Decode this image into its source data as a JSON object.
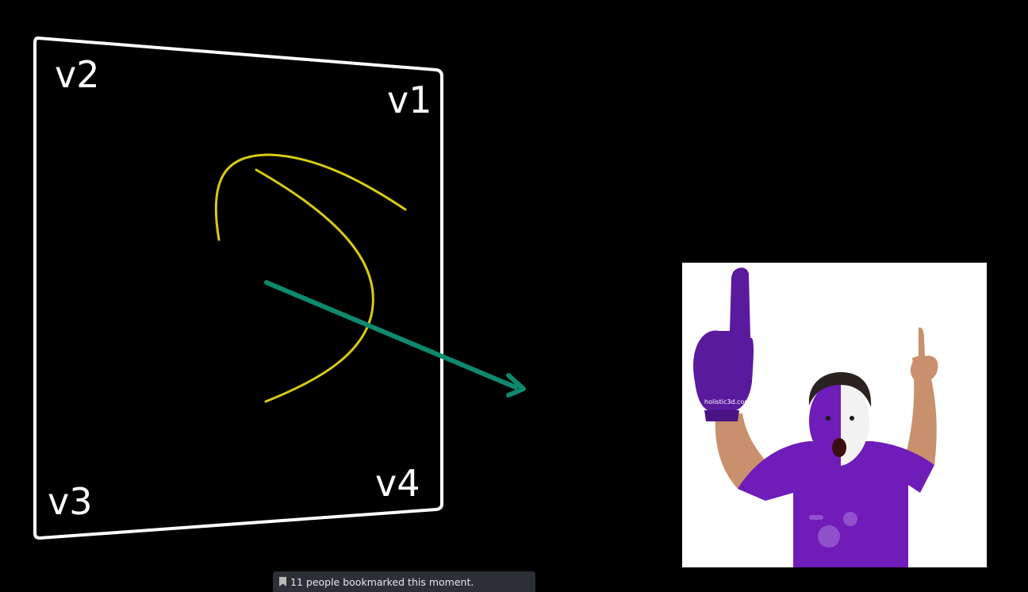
{
  "diagram": {
    "vertex_labels": {
      "v1": "v1",
      "v2": "v2",
      "v3": "v3",
      "v4": "v4"
    },
    "colors": {
      "frame": "#ffffff",
      "curve": "#d8cc12",
      "arrow": "#0d8a6e"
    }
  },
  "photo": {
    "watermark": "holistic3d.com",
    "colors": {
      "shirt": "#6f1cb8",
      "glove": "#5a1a9e",
      "skin": "#c8906c",
      "background": "#ffffff"
    }
  },
  "toast": {
    "icon": "bookmark-icon",
    "text": "11 people bookmarked this moment."
  }
}
